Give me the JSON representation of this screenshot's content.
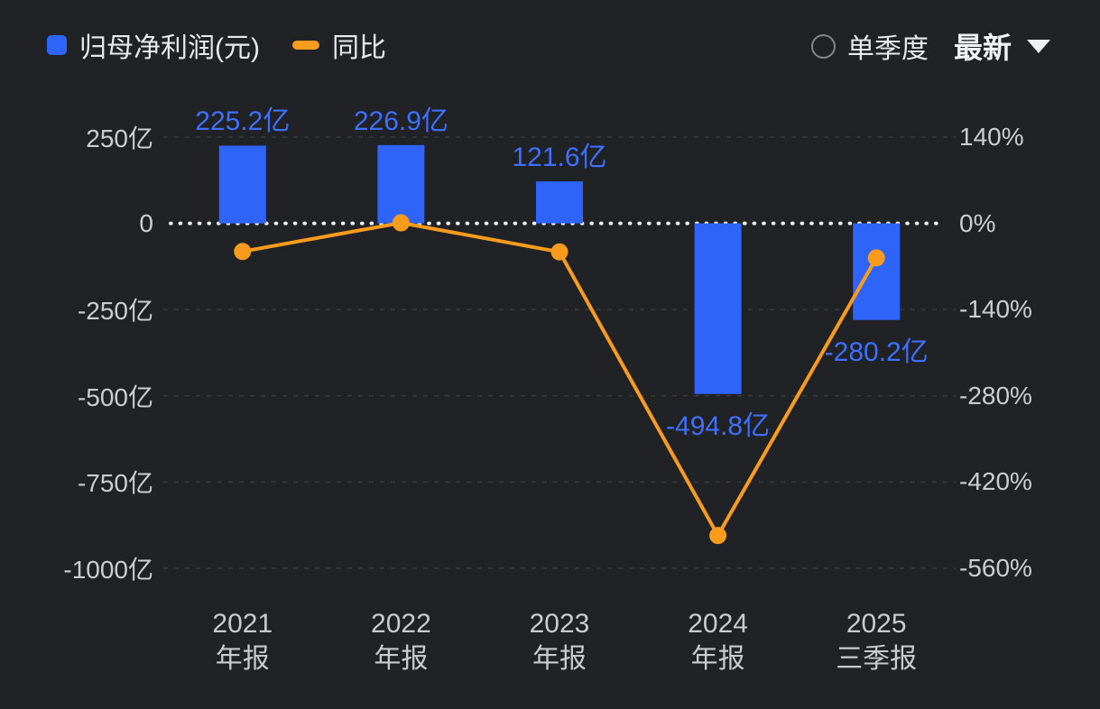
{
  "header": {
    "legend": [
      {
        "label": "归母净利润(元)",
        "color": "#2f64f8",
        "type": "bar"
      },
      {
        "label": "同比",
        "color": "#f99c1d",
        "type": "line"
      }
    ],
    "quarter_toggle_label": "单季度",
    "period_selector": {
      "value": "最新"
    }
  },
  "chart_data": {
    "type": "bar",
    "categories": [
      {
        "line1": "2021",
        "line2": "年报"
      },
      {
        "line1": "2022",
        "line2": "年报"
      },
      {
        "line1": "2023",
        "line2": "年报"
      },
      {
        "line1": "2024",
        "line2": "年报"
      },
      {
        "line1": "2025",
        "line2": "三季报"
      }
    ],
    "series": [
      {
        "name": "归母净利润(元)",
        "type": "bar",
        "unit": "亿",
        "color": "#2f64f8",
        "values": [
          225.2,
          226.9,
          121.6,
          -494.8,
          -280.2
        ],
        "labels": [
          "225.2亿",
          "226.9亿",
          "121.6亿",
          "-494.8亿",
          "-280.2亿"
        ]
      },
      {
        "name": "同比",
        "type": "line",
        "unit": "%",
        "color": "#f99c1d",
        "values": [
          -45.7,
          0.8,
          -46.4,
          -506.8,
          -56.1
        ]
      }
    ],
    "left_axis": {
      "ticks": [
        "250亿",
        "0",
        "-250亿",
        "-500亿",
        "-750亿",
        "-1000亿"
      ],
      "values": [
        250,
        0,
        -250,
        -500,
        -750,
        -1000
      ]
    },
    "right_axis": {
      "ticks": [
        "140%",
        "0%",
        "-140%",
        "-280%",
        "-420%",
        "-560%"
      ],
      "values": [
        140,
        0,
        -140,
        -280,
        -420,
        -560
      ]
    },
    "value_label_color": "#3f70fc",
    "grid": "dashed",
    "zero_line": true
  }
}
